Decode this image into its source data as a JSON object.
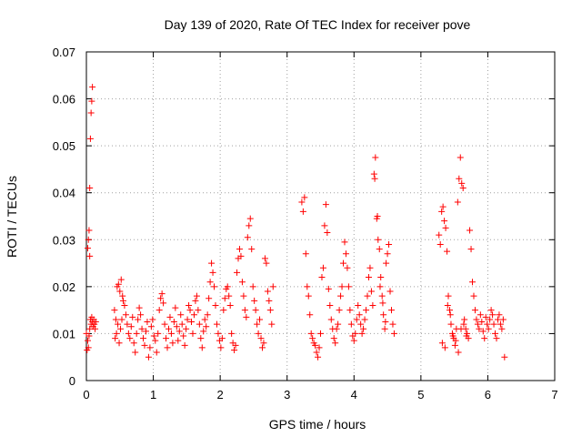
{
  "chart_data": {
    "type": "scatter",
    "title": "Day 139 of 2020, Rate Of TEC Index for receiver pove",
    "xlabel": "GPS time / hours",
    "ylabel": "ROTI / TECUs",
    "xlim": [
      0,
      7
    ],
    "ylim": [
      0,
      0.07
    ],
    "xticks": [
      0,
      1,
      2,
      3,
      4,
      5,
      6,
      7
    ],
    "yticks": [
      0,
      0.01,
      0.02,
      0.03,
      0.04,
      0.05,
      0.06,
      0.07
    ],
    "ytick_labels": [
      "0",
      "0.01",
      "0.02",
      "0.03",
      "0.04",
      "0.05",
      "0.06",
      "0.07"
    ],
    "grid": true,
    "marker": "+",
    "color": "#ff0000",
    "series": [
      {
        "points": [
          [
            0.02,
            0.0282
          ],
          [
            0.03,
            0.03
          ],
          [
            0.04,
            0.032
          ],
          [
            0.05,
            0.0265
          ],
          [
            0.05,
            0.041
          ],
          [
            0.06,
            0.0515
          ],
          [
            0.07,
            0.057
          ],
          [
            0.08,
            0.0595
          ],
          [
            0.09,
            0.0625
          ],
          [
            0.02,
            0.0085
          ],
          [
            0.03,
            0.007
          ],
          [
            0.04,
            0.0095
          ],
          [
            0.05,
            0.011
          ],
          [
            0.06,
            0.013
          ],
          [
            0.07,
            0.012
          ],
          [
            0.08,
            0.0135
          ],
          [
            0.09,
            0.0125
          ],
          [
            0.1,
            0.0115
          ],
          [
            0.11,
            0.013
          ],
          [
            0.12,
            0.012
          ],
          [
            0.13,
            0.011
          ],
          [
            0.14,
            0.0125
          ],
          [
            0.0,
            0.01
          ],
          [
            0.01,
            0.0065
          ],
          [
            0.42,
            0.015
          ],
          [
            0.44,
            0.013
          ],
          [
            0.46,
            0.02
          ],
          [
            0.48,
            0.0205
          ],
          [
            0.5,
            0.019
          ],
          [
            0.52,
            0.0215
          ],
          [
            0.54,
            0.018
          ],
          [
            0.43,
            0.009
          ],
          [
            0.45,
            0.01
          ],
          [
            0.47,
            0.012
          ],
          [
            0.49,
            0.008
          ],
          [
            0.51,
            0.011
          ],
          [
            0.53,
            0.013
          ],
          [
            0.55,
            0.017
          ],
          [
            0.57,
            0.016
          ],
          [
            0.59,
            0.014
          ],
          [
            0.61,
            0.012
          ],
          [
            0.63,
            0.01
          ],
          [
            0.65,
            0.009
          ],
          [
            0.67,
            0.0115
          ],
          [
            0.69,
            0.0135
          ],
          [
            0.71,
            0.008
          ],
          [
            0.73,
            0.006
          ],
          [
            0.75,
            0.01
          ],
          [
            0.77,
            0.013
          ],
          [
            0.79,
            0.0155
          ],
          [
            0.81,
            0.014
          ],
          [
            0.83,
            0.011
          ],
          [
            0.85,
            0.009
          ],
          [
            0.87,
            0.0075
          ],
          [
            0.89,
            0.0105
          ],
          [
            0.91,
            0.0125
          ],
          [
            0.93,
            0.005
          ],
          [
            0.95,
            0.007
          ],
          [
            0.97,
            0.0115
          ],
          [
            0.99,
            0.013
          ],
          [
            1.01,
            0.0095
          ],
          [
            1.03,
            0.0085
          ],
          [
            1.05,
            0.006
          ],
          [
            1.07,
            0.01
          ],
          [
            1.09,
            0.015
          ],
          [
            1.11,
            0.0175
          ],
          [
            1.13,
            0.0185
          ],
          [
            1.15,
            0.0165
          ],
          [
            1.17,
            0.012
          ],
          [
            1.19,
            0.009
          ],
          [
            1.21,
            0.007
          ],
          [
            1.23,
            0.011
          ],
          [
            1.25,
            0.0135
          ],
          [
            1.27,
            0.01
          ],
          [
            1.29,
            0.008
          ],
          [
            1.31,
            0.0125
          ],
          [
            1.33,
            0.0155
          ],
          [
            1.35,
            0.0115
          ],
          [
            1.37,
            0.0085
          ],
          [
            1.39,
            0.0105
          ],
          [
            1.41,
            0.014
          ],
          [
            1.43,
            0.012
          ],
          [
            1.45,
            0.0095
          ],
          [
            1.47,
            0.0075
          ],
          [
            1.49,
            0.011
          ],
          [
            1.51,
            0.013
          ],
          [
            1.53,
            0.016
          ],
          [
            1.55,
            0.015
          ],
          [
            1.57,
            0.0125
          ],
          [
            1.59,
            0.01
          ],
          [
            1.61,
            0.014
          ],
          [
            1.63,
            0.017
          ],
          [
            1.65,
            0.018
          ],
          [
            1.67,
            0.015
          ],
          [
            1.69,
            0.012
          ],
          [
            1.71,
            0.009
          ],
          [
            1.73,
            0.007
          ],
          [
            1.75,
            0.0105
          ],
          [
            1.77,
            0.013
          ],
          [
            1.79,
            0.0115
          ],
          [
            1.81,
            0.014
          ],
          [
            1.83,
            0.0175
          ],
          [
            1.85,
            0.021
          ],
          [
            1.87,
            0.025
          ],
          [
            1.89,
            0.023
          ],
          [
            1.91,
            0.02
          ],
          [
            1.93,
            0.016
          ],
          [
            1.95,
            0.012
          ],
          [
            1.97,
            0.01
          ],
          [
            1.99,
            0.0085
          ],
          [
            2.01,
            0.007
          ],
          [
            2.03,
            0.009
          ],
          [
            2.05,
            0.015
          ],
          [
            2.07,
            0.0175
          ],
          [
            2.09,
            0.0195
          ],
          [
            2.11,
            0.02
          ],
          [
            2.13,
            0.018
          ],
          [
            2.15,
            0.016
          ],
          [
            2.17,
            0.01
          ],
          [
            2.19,
            0.008
          ],
          [
            2.21,
            0.0065
          ],
          [
            2.23,
            0.0075
          ],
          [
            2.25,
            0.023
          ],
          [
            2.27,
            0.026
          ],
          [
            2.29,
            0.028
          ],
          [
            2.31,
            0.0265
          ],
          [
            2.33,
            0.021
          ],
          [
            2.35,
            0.018
          ],
          [
            2.37,
            0.015
          ],
          [
            2.39,
            0.0135
          ],
          [
            2.41,
            0.0305
          ],
          [
            2.43,
            0.033
          ],
          [
            2.45,
            0.0345
          ],
          [
            2.47,
            0.028
          ],
          [
            2.49,
            0.02
          ],
          [
            2.51,
            0.017
          ],
          [
            2.53,
            0.015
          ],
          [
            2.55,
            0.012
          ],
          [
            2.57,
            0.01
          ],
          [
            2.59,
            0.013
          ],
          [
            2.61,
            0.009
          ],
          [
            2.63,
            0.007
          ],
          [
            2.65,
            0.008
          ],
          [
            2.67,
            0.026
          ],
          [
            2.69,
            0.025
          ],
          [
            2.71,
            0.019
          ],
          [
            2.73,
            0.017
          ],
          [
            2.75,
            0.015
          ],
          [
            2.77,
            0.012
          ],
          [
            2.79,
            0.02
          ],
          [
            3.22,
            0.038
          ],
          [
            3.24,
            0.036
          ],
          [
            3.26,
            0.039
          ],
          [
            3.28,
            0.027
          ],
          [
            3.3,
            0.02
          ],
          [
            3.32,
            0.018
          ],
          [
            3.34,
            0.014
          ],
          [
            3.36,
            0.01
          ],
          [
            3.38,
            0.009
          ],
          [
            3.4,
            0.008
          ],
          [
            3.42,
            0.0075
          ],
          [
            3.44,
            0.006
          ],
          [
            3.46,
            0.005
          ],
          [
            3.48,
            0.007
          ],
          [
            3.5,
            0.01
          ],
          [
            3.52,
            0.022
          ],
          [
            3.54,
            0.024
          ],
          [
            3.56,
            0.033
          ],
          [
            3.58,
            0.0375
          ],
          [
            3.6,
            0.0315
          ],
          [
            3.62,
            0.0195
          ],
          [
            3.64,
            0.016
          ],
          [
            3.66,
            0.013
          ],
          [
            3.68,
            0.011
          ],
          [
            3.7,
            0.009
          ],
          [
            3.72,
            0.008
          ],
          [
            3.74,
            0.011
          ],
          [
            3.76,
            0.012
          ],
          [
            3.78,
            0.015
          ],
          [
            3.8,
            0.018
          ],
          [
            3.82,
            0.02
          ],
          [
            3.84,
            0.025
          ],
          [
            3.86,
            0.0295
          ],
          [
            3.88,
            0.027
          ],
          [
            3.9,
            0.024
          ],
          [
            3.92,
            0.02
          ],
          [
            3.94,
            0.015
          ],
          [
            3.96,
            0.012
          ],
          [
            3.98,
            0.0095
          ],
          [
            4.0,
            0.0085
          ],
          [
            4.02,
            0.01
          ],
          [
            4.04,
            0.013
          ],
          [
            4.06,
            0.016
          ],
          [
            4.08,
            0.014
          ],
          [
            4.1,
            0.012
          ],
          [
            4.12,
            0.01
          ],
          [
            4.14,
            0.011
          ],
          [
            4.16,
            0.013
          ],
          [
            4.18,
            0.015
          ],
          [
            4.2,
            0.018
          ],
          [
            4.22,
            0.022
          ],
          [
            4.24,
            0.024
          ],
          [
            4.26,
            0.019
          ],
          [
            4.28,
            0.016
          ],
          [
            4.3,
            0.044
          ],
          [
            4.32,
            0.0475
          ],
          [
            4.34,
            0.0345
          ],
          [
            4.36,
            0.03
          ],
          [
            4.38,
            0.028
          ],
          [
            4.4,
            0.022
          ],
          [
            4.42,
            0.018
          ],
          [
            4.44,
            0.014
          ],
          [
            4.46,
            0.011
          ],
          [
            4.48,
            0.025
          ],
          [
            4.5,
            0.027
          ],
          [
            4.52,
            0.029
          ],
          [
            4.54,
            0.019
          ],
          [
            4.56,
            0.015
          ],
          [
            4.58,
            0.012
          ],
          [
            4.6,
            0.01
          ],
          [
            4.31,
            0.043
          ],
          [
            4.35,
            0.035
          ],
          [
            4.39,
            0.02
          ],
          [
            4.43,
            0.0165
          ],
          [
            4.47,
            0.0125
          ],
          [
            5.27,
            0.031
          ],
          [
            5.29,
            0.029
          ],
          [
            5.31,
            0.036
          ],
          [
            5.33,
            0.037
          ],
          [
            5.35,
            0.034
          ],
          [
            5.37,
            0.0325
          ],
          [
            5.39,
            0.0275
          ],
          [
            5.41,
            0.018
          ],
          [
            5.43,
            0.015
          ],
          [
            5.45,
            0.012
          ],
          [
            5.47,
            0.01
          ],
          [
            5.49,
            0.009
          ],
          [
            5.51,
            0.0075
          ],
          [
            5.53,
            0.011
          ],
          [
            5.55,
            0.038
          ],
          [
            5.57,
            0.043
          ],
          [
            5.59,
            0.0475
          ],
          [
            5.61,
            0.042
          ],
          [
            5.63,
            0.041
          ],
          [
            5.65,
            0.013
          ],
          [
            5.67,
            0.011
          ],
          [
            5.69,
            0.01
          ],
          [
            5.71,
            0.009
          ],
          [
            5.73,
            0.032
          ],
          [
            5.75,
            0.028
          ],
          [
            5.77,
            0.021
          ],
          [
            5.79,
            0.018
          ],
          [
            5.81,
            0.015
          ],
          [
            5.83,
            0.013
          ],
          [
            5.85,
            0.012
          ],
          [
            5.87,
            0.011
          ],
          [
            5.89,
            0.014
          ],
          [
            5.91,
            0.0125
          ],
          [
            5.93,
            0.0105
          ],
          [
            5.95,
            0.009
          ],
          [
            5.97,
            0.0135
          ],
          [
            5.99,
            0.012
          ],
          [
            6.01,
            0.011
          ],
          [
            6.03,
            0.013
          ],
          [
            6.05,
            0.015
          ],
          [
            6.07,
            0.014
          ],
          [
            6.09,
            0.012
          ],
          [
            6.11,
            0.01
          ],
          [
            6.13,
            0.009
          ],
          [
            6.15,
            0.013
          ],
          [
            6.17,
            0.014
          ],
          [
            6.19,
            0.012
          ],
          [
            6.21,
            0.011
          ],
          [
            6.23,
            0.013
          ],
          [
            6.25,
            0.005
          ],
          [
            5.32,
            0.008
          ],
          [
            5.36,
            0.007
          ],
          [
            5.4,
            0.016
          ],
          [
            5.44,
            0.014
          ],
          [
            5.48,
            0.0095
          ],
          [
            5.52,
            0.0085
          ],
          [
            5.56,
            0.006
          ],
          [
            5.6,
            0.011
          ],
          [
            5.64,
            0.012
          ],
          [
            5.68,
            0.0095
          ]
        ]
      }
    ]
  }
}
